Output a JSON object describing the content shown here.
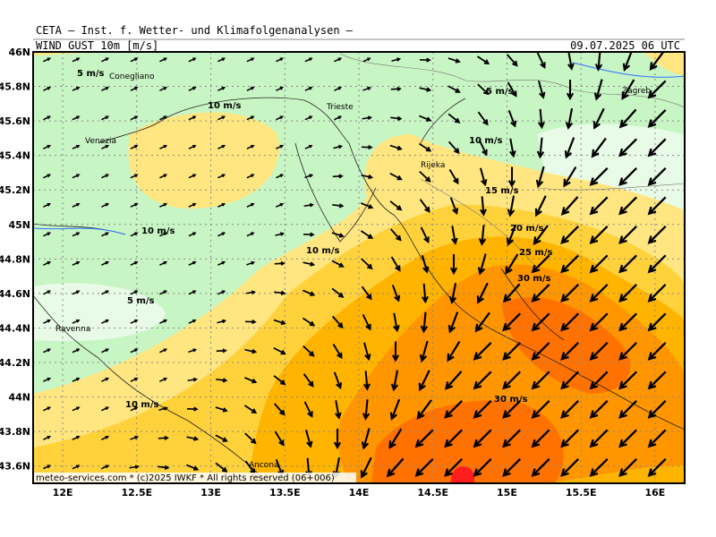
{
  "header": {
    "title": "CETA — Inst. f. Wetter- und Klimafolgenanalysen —",
    "field": "WIND_GUST_10m [m/s]",
    "valid_time": "09.07.2025 06 UTC"
  },
  "map": {
    "lon_range": [
      11.8,
      16.2
    ],
    "lat_range": [
      43.5,
      46.0
    ],
    "lat_ticks": [
      {
        "value": 46,
        "label": "46N"
      },
      {
        "value": 45.8,
        "label": "45.8N"
      },
      {
        "value": 45.6,
        "label": "45.6N"
      },
      {
        "value": 45.4,
        "label": "45.4N"
      },
      {
        "value": 45.2,
        "label": "45.2N"
      },
      {
        "value": 45,
        "label": "45N"
      },
      {
        "value": 44.8,
        "label": "44.8N"
      },
      {
        "value": 44.6,
        "label": "44.6N"
      },
      {
        "value": 44.4,
        "label": "44.4N"
      },
      {
        "value": 44.2,
        "label": "44.2N"
      },
      {
        "value": 44,
        "label": "44N"
      },
      {
        "value": 43.8,
        "label": "43.8N"
      },
      {
        "value": 43.6,
        "label": "43.6N"
      }
    ],
    "lon_ticks": [
      {
        "value": 12,
        "label": "12E"
      },
      {
        "value": 12.5,
        "label": "12.5E"
      },
      {
        "value": 13,
        "label": "13E"
      },
      {
        "value": 13.5,
        "label": "13.5E"
      },
      {
        "value": 14,
        "label": "14E"
      },
      {
        "value": 14.5,
        "label": "14.5E"
      },
      {
        "value": 15,
        "label": "15E"
      },
      {
        "value": 15.5,
        "label": "15.5E"
      },
      {
        "value": 16,
        "label": "16E"
      }
    ],
    "places": [
      "Conegliano",
      "Venezia",
      "Trieste",
      "Rijeka",
      "Zagreb",
      "Ravenna",
      "Ancona"
    ],
    "contour_labels": [
      "5 m/s",
      "10 m/s",
      "5 m/s",
      "10 m/s",
      "15 m/s",
      "20 m/s",
      "25 m/s",
      "30 m/s",
      "10 m/s",
      "10 m/s",
      "5 m/s",
      "10 m/s",
      "30 m/s"
    ]
  },
  "footer": "meteo-services.com * (c)2025 IWKF * All rights reserved (06+006)"
}
